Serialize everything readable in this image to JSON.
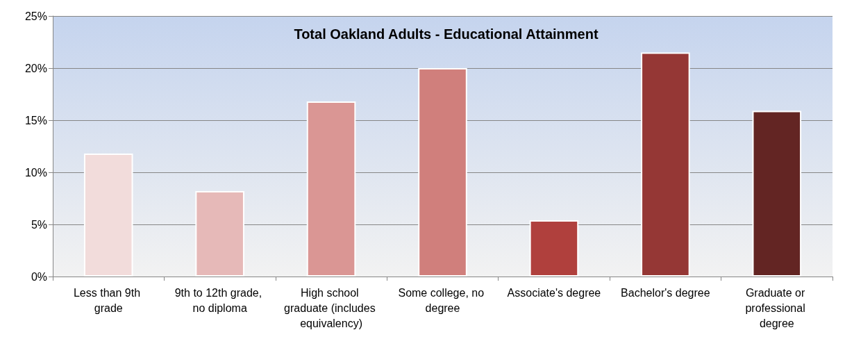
{
  "chart_data": {
    "type": "bar",
    "title": "Total Oakland Adults - Educational Attainment",
    "categories": [
      "Less than 9th grade",
      "9th to 12th grade, no diploma",
      "High school graduate (includes equivalency)",
      "Some college, no degree",
      "Associate's degree",
      "Bachelor's degree",
      "Graduate or professional degree"
    ],
    "values": [
      11.8,
      8.2,
      16.8,
      20.0,
      5.4,
      21.5,
      15.9
    ],
    "colors": [
      "#f2dcdb",
      "#e6b9b8",
      "#da9694",
      "#d07f7c",
      "#b0403d",
      "#953735",
      "#632523"
    ],
    "ylim": [
      0,
      25
    ],
    "yticks": [
      {
        "value": 0,
        "label": "0%"
      },
      {
        "value": 5,
        "label": "5%"
      },
      {
        "value": 10,
        "label": "10%"
      },
      {
        "value": 15,
        "label": "15%"
      },
      {
        "value": 20,
        "label": "20%"
      },
      {
        "value": 25,
        "label": "25%"
      }
    ],
    "grid": "y"
  }
}
